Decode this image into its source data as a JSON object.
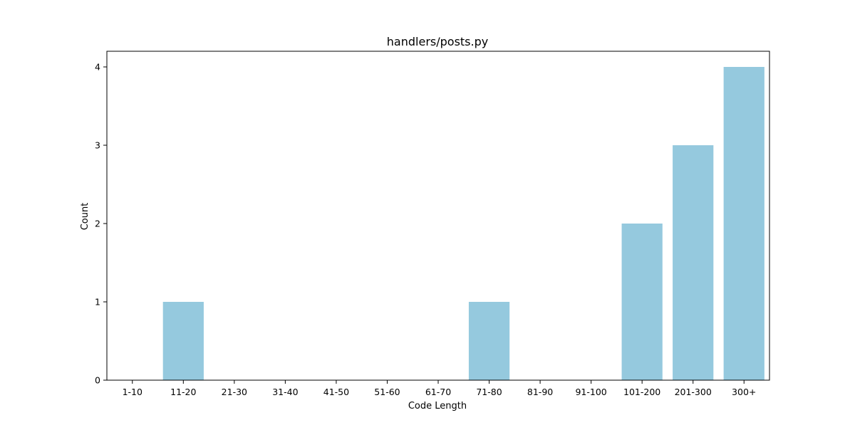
{
  "chart_data": {
    "type": "bar",
    "title": "handlers/posts.py",
    "xlabel": "Code Length",
    "ylabel": "Count",
    "categories": [
      "1-10",
      "11-20",
      "21-30",
      "31-40",
      "41-50",
      "51-60",
      "61-70",
      "71-80",
      "81-90",
      "91-100",
      "101-200",
      "201-300",
      "300+"
    ],
    "values": [
      0,
      1,
      0,
      0,
      0,
      0,
      0,
      1,
      0,
      0,
      2,
      3,
      4
    ],
    "yticks": [
      0,
      1,
      2,
      3,
      4
    ],
    "ylim": [
      0,
      4.2
    ],
    "grid": false,
    "bar_color": "#95c9de"
  }
}
